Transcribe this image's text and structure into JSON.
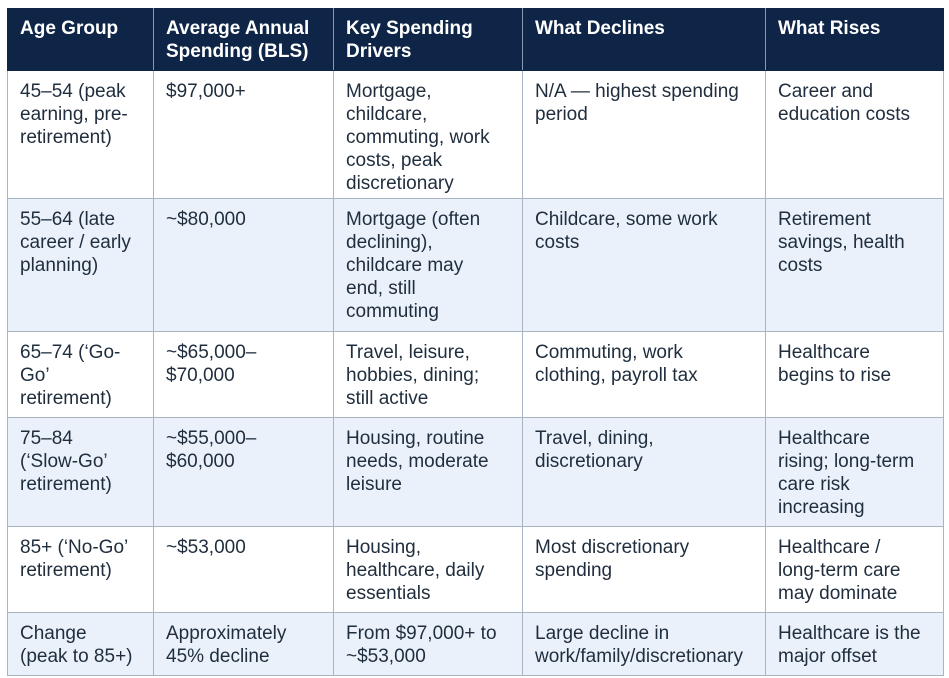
{
  "table": {
    "headers": [
      "Age Group",
      "Average Annual\nSpending (BLS)",
      "Key Spending\nDrivers",
      "What Declines",
      "What Rises"
    ],
    "rows": [
      [
        "45–54 (peak\nearning, pre-\nretirement)",
        "$97,000+",
        "Mortgage,\nchildcare,\ncommuting, work\ncosts, peak\ndiscretionary",
        "N/A — highest spending\nperiod",
        "Career and\neducation costs"
      ],
      [
        "55–64 (late\ncareer / early\nplanning)",
        "~$80,000",
        "Mortgage (often\ndeclining),\nchildcare may\nend, still\ncommuting",
        "Childcare, some work\ncosts",
        "Retirement\nsavings, health\ncosts"
      ],
      [
        "65–74 (‘Go-\nGo’\nretirement)",
        "~$65,000–\n$70,000",
        "Travel, leisure,\nhobbies, dining;\nstill active",
        "Commuting, work\nclothing, payroll tax",
        "Healthcare\nbegins to rise"
      ],
      [
        "75–84\n(‘Slow-Go’\nretirement)",
        "~$55,000–\n$60,000",
        "Housing, routine\nneeds, moderate\nleisure",
        "Travel, dining,\ndiscretionary",
        "Healthcare\nrising; long-term\ncare risk\nincreasing"
      ],
      [
        "85+ (‘No-Go’\nretirement)",
        "~$53,000",
        "Housing,\nhealthcare, daily\nessentials",
        "Most discretionary\nspending",
        "Healthcare /\nlong-term care\nmay dominate"
      ],
      [
        "Change\n(peak to 85+)",
        "Approximately\n45% decline",
        "From $97,000+ to\n~$53,000",
        "Large decline in\nwork/family/discretionary",
        "Healthcare is the\nmajor offset"
      ]
    ]
  },
  "colors": {
    "header_bg": "#0f2547",
    "header_text": "#ffffff",
    "row_alt_bg": "#eaf1fb",
    "body_text": "#1f2d3d",
    "border": "#a9b4c2"
  }
}
